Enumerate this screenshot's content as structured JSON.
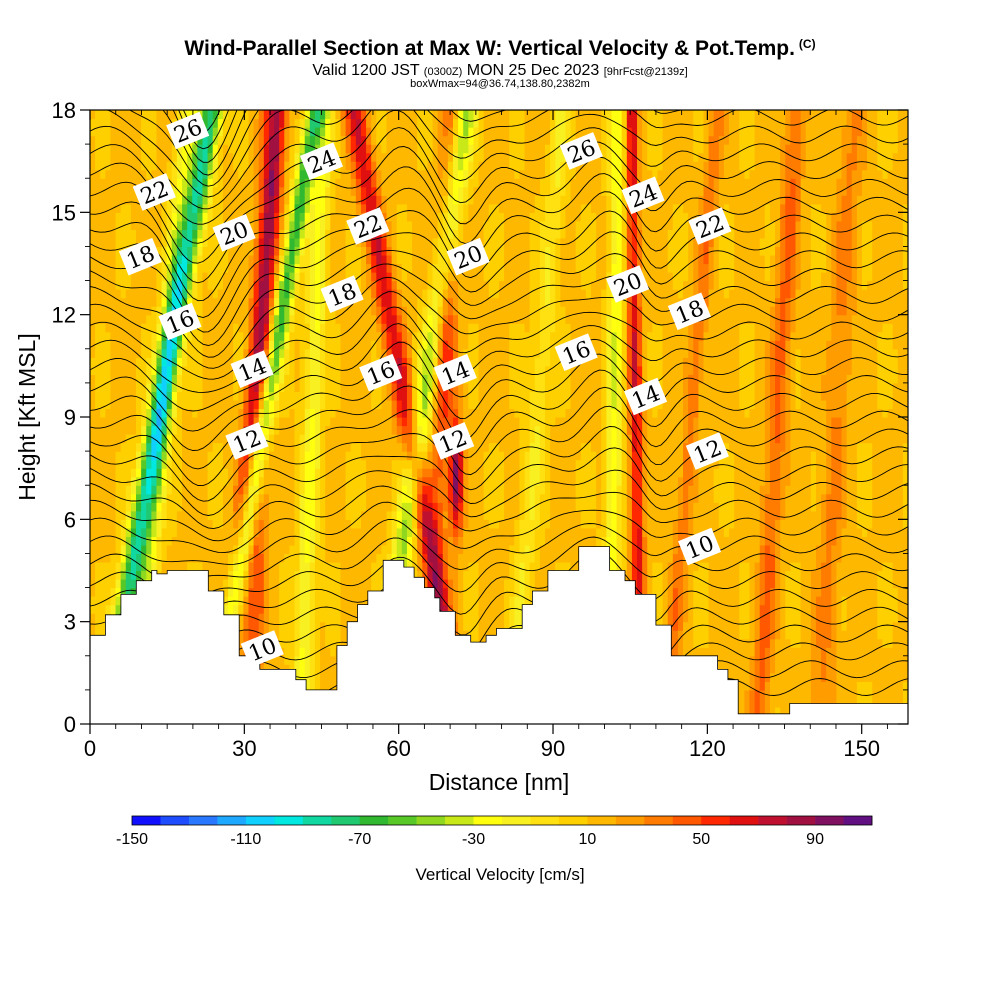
{
  "titles": {
    "main": "Wind-Parallel Section at Max W: Vertical Velocity & Pot.Temp.",
    "copyright": "(C)",
    "valid_pre": "Valid 1200 JST",
    "valid_z": "(0300Z)",
    "valid_post": "MON 25 Dec 2023",
    "fcst": "[9hrFcst@2139z]",
    "box": "boxWmax=94@36.74,138.80,2382m"
  },
  "chart_data": {
    "type": "heatmap",
    "xlabel": "Distance [nm]",
    "ylabel": "Height [Kft MSL]",
    "xlim": [
      0,
      159
    ],
    "ylim": [
      0,
      18
    ],
    "x_ticks": [
      0,
      30,
      60,
      90,
      120,
      150
    ],
    "y_ticks": [
      0,
      3,
      6,
      9,
      12,
      15,
      18
    ],
    "colorbar": {
      "label": "Vertical Velocity [cm/s]",
      "min": -150,
      "max": 110,
      "step": 10,
      "tick_labels": [
        -150,
        -110,
        -70,
        -30,
        10,
        50,
        90
      ],
      "colors": [
        "#1010ff",
        "#1e4cff",
        "#2a78ff",
        "#1ea8ff",
        "#10d0ff",
        "#00e8e0",
        "#10d8a0",
        "#20c870",
        "#30b830",
        "#58c828",
        "#90d820",
        "#c8e818",
        "#ffff10",
        "#f8f020",
        "#ffe010",
        "#ffd000",
        "#ffb800",
        "#ff9c00",
        "#ff7c00",
        "#ff5800",
        "#ff2800",
        "#e01010",
        "#c01030",
        "#a01040",
        "#801060",
        "#601080"
      ]
    },
    "contour_labels": [
      {
        "text": "26",
        "x": 19,
        "y": 17.4
      },
      {
        "text": "22",
        "x": 12.5,
        "y": 15.6
      },
      {
        "text": "18",
        "x": 9.8,
        "y": 13.7
      },
      {
        "text": "20",
        "x": 28,
        "y": 14.4
      },
      {
        "text": "24",
        "x": 45,
        "y": 16.5
      },
      {
        "text": "22",
        "x": 54,
        "y": 14.6
      },
      {
        "text": "18",
        "x": 49,
        "y": 12.6
      },
      {
        "text": "16",
        "x": 17.5,
        "y": 11.8
      },
      {
        "text": "14",
        "x": 31.5,
        "y": 10.4
      },
      {
        "text": "12",
        "x": 30.5,
        "y": 8.3
      },
      {
        "text": "16",
        "x": 56.5,
        "y": 10.3
      },
      {
        "text": "20",
        "x": 73.5,
        "y": 13.7
      },
      {
        "text": "14",
        "x": 71,
        "y": 10.3
      },
      {
        "text": "12",
        "x": 70.5,
        "y": 8.3
      },
      {
        "text": "26",
        "x": 95.5,
        "y": 16.8
      },
      {
        "text": "24",
        "x": 107.5,
        "y": 15.5
      },
      {
        "text": "22",
        "x": 120.5,
        "y": 14.6
      },
      {
        "text": "20",
        "x": 104.5,
        "y": 12.9
      },
      {
        "text": "18",
        "x": 116.5,
        "y": 12.1
      },
      {
        "text": "16",
        "x": 94.5,
        "y": 10.9
      },
      {
        "text": "14",
        "x": 108,
        "y": 9.6
      },
      {
        "text": "12",
        "x": 120,
        "y": 8.0
      },
      {
        "text": "10",
        "x": 118.5,
        "y": 5.2
      },
      {
        "text": "10",
        "x": 33.5,
        "y": 2.2
      }
    ],
    "terrain_kft": [
      [
        0,
        2.6
      ],
      [
        3,
        2.6
      ],
      [
        3,
        3.2
      ],
      [
        6,
        3.2
      ],
      [
        6,
        3.8
      ],
      [
        9,
        3.8
      ],
      [
        9,
        4.2
      ],
      [
        12,
        4.2
      ],
      [
        12,
        4.5
      ],
      [
        13,
        4.5
      ],
      [
        13,
        4.4
      ],
      [
        15,
        4.4
      ],
      [
        15,
        4.5
      ],
      [
        23,
        4.5
      ],
      [
        23,
        3.9
      ],
      [
        26,
        3.9
      ],
      [
        26,
        3.2
      ],
      [
        29,
        3.2
      ],
      [
        29,
        2.0
      ],
      [
        33,
        2.0
      ],
      [
        33,
        1.6
      ],
      [
        40,
        1.6
      ],
      [
        40,
        1.3
      ],
      [
        42,
        1.3
      ],
      [
        42,
        1.0
      ],
      [
        48,
        1.0
      ],
      [
        48,
        2.3
      ],
      [
        50,
        2.3
      ],
      [
        50,
        3.0
      ],
      [
        52,
        3.0
      ],
      [
        52,
        3.5
      ],
      [
        54,
        3.5
      ],
      [
        54,
        3.9
      ],
      [
        57,
        3.9
      ],
      [
        57,
        4.8
      ],
      [
        61,
        4.8
      ],
      [
        61,
        4.6
      ],
      [
        63,
        4.6
      ],
      [
        63,
        4.3
      ],
      [
        65,
        4.3
      ],
      [
        65,
        4.0
      ],
      [
        67,
        4.0
      ],
      [
        67,
        3.7
      ],
      [
        68,
        3.7
      ],
      [
        68,
        3.3
      ],
      [
        71,
        3.3
      ],
      [
        71,
        2.6
      ],
      [
        74,
        2.6
      ],
      [
        74,
        2.4
      ],
      [
        77,
        2.4
      ],
      [
        77,
        2.6
      ],
      [
        79,
        2.6
      ],
      [
        79,
        2.8
      ],
      [
        84,
        2.8
      ],
      [
        84,
        3.5
      ],
      [
        86,
        3.5
      ],
      [
        86,
        3.9
      ],
      [
        89,
        3.9
      ],
      [
        89,
        4.5
      ],
      [
        95,
        4.5
      ],
      [
        95,
        5.2
      ],
      [
        101,
        5.2
      ],
      [
        101,
        4.5
      ],
      [
        104,
        4.5
      ],
      [
        104,
        4.2
      ],
      [
        106,
        4.2
      ],
      [
        106,
        3.8
      ],
      [
        110,
        3.8
      ],
      [
        110,
        2.9
      ],
      [
        113,
        2.9
      ],
      [
        113,
        2.0
      ],
      [
        122,
        2.0
      ],
      [
        122,
        1.6
      ],
      [
        124,
        1.6
      ],
      [
        124,
        1.3
      ],
      [
        126,
        1.3
      ],
      [
        126,
        0.3
      ],
      [
        136,
        0.3
      ],
      [
        136,
        0.6
      ],
      [
        159,
        0.6
      ]
    ]
  }
}
